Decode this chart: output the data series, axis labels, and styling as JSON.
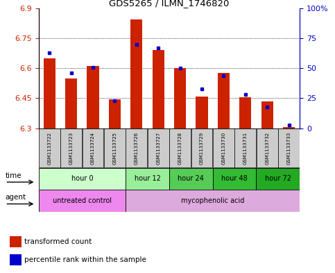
{
  "title": "GDS5265 / ILMN_1746820",
  "samples": [
    "GSM1133722",
    "GSM1133723",
    "GSM1133724",
    "GSM1133725",
    "GSM1133726",
    "GSM1133727",
    "GSM1133728",
    "GSM1133729",
    "GSM1133730",
    "GSM1133731",
    "GSM1133732",
    "GSM1133733"
  ],
  "transformed_counts": [
    6.65,
    6.55,
    6.61,
    6.445,
    6.845,
    6.69,
    6.6,
    6.46,
    6.575,
    6.455,
    6.435,
    6.305
  ],
  "percentile_ranks": [
    63,
    46,
    51,
    23,
    70,
    67,
    50,
    33,
    44,
    28,
    18,
    3
  ],
  "ymin": 6.3,
  "ymax": 6.9,
  "y_ticks_left": [
    6.3,
    6.45,
    6.6,
    6.75,
    6.9
  ],
  "y_ticks_right": [
    0,
    25,
    50,
    75,
    100
  ],
  "bar_color": "#cc2200",
  "marker_color": "#0000cc",
  "bar_bottom": 6.3,
  "time_groups": [
    {
      "label": "hour 0",
      "start": 0,
      "end": 4,
      "color": "#ccffcc"
    },
    {
      "label": "hour 12",
      "start": 4,
      "end": 6,
      "color": "#99ee99"
    },
    {
      "label": "hour 24",
      "start": 6,
      "end": 8,
      "color": "#55cc55"
    },
    {
      "label": "hour 48",
      "start": 8,
      "end": 10,
      "color": "#33bb33"
    },
    {
      "label": "hour 72",
      "start": 10,
      "end": 12,
      "color": "#22aa22"
    }
  ],
  "agent_groups": [
    {
      "label": "untreated control",
      "start": 0,
      "end": 4,
      "color": "#ee88ee"
    },
    {
      "label": "mycophenolic acid",
      "start": 4,
      "end": 12,
      "color": "#ddaadd"
    }
  ],
  "left_axis_color": "#cc2200",
  "right_axis_color": "#0000cc",
  "sample_box_color": "#cccccc",
  "legend_red_label": "transformed count",
  "legend_blue_label": "percentile rank within the sample",
  "fig_width": 4.83,
  "fig_height": 3.93,
  "dpi": 100
}
